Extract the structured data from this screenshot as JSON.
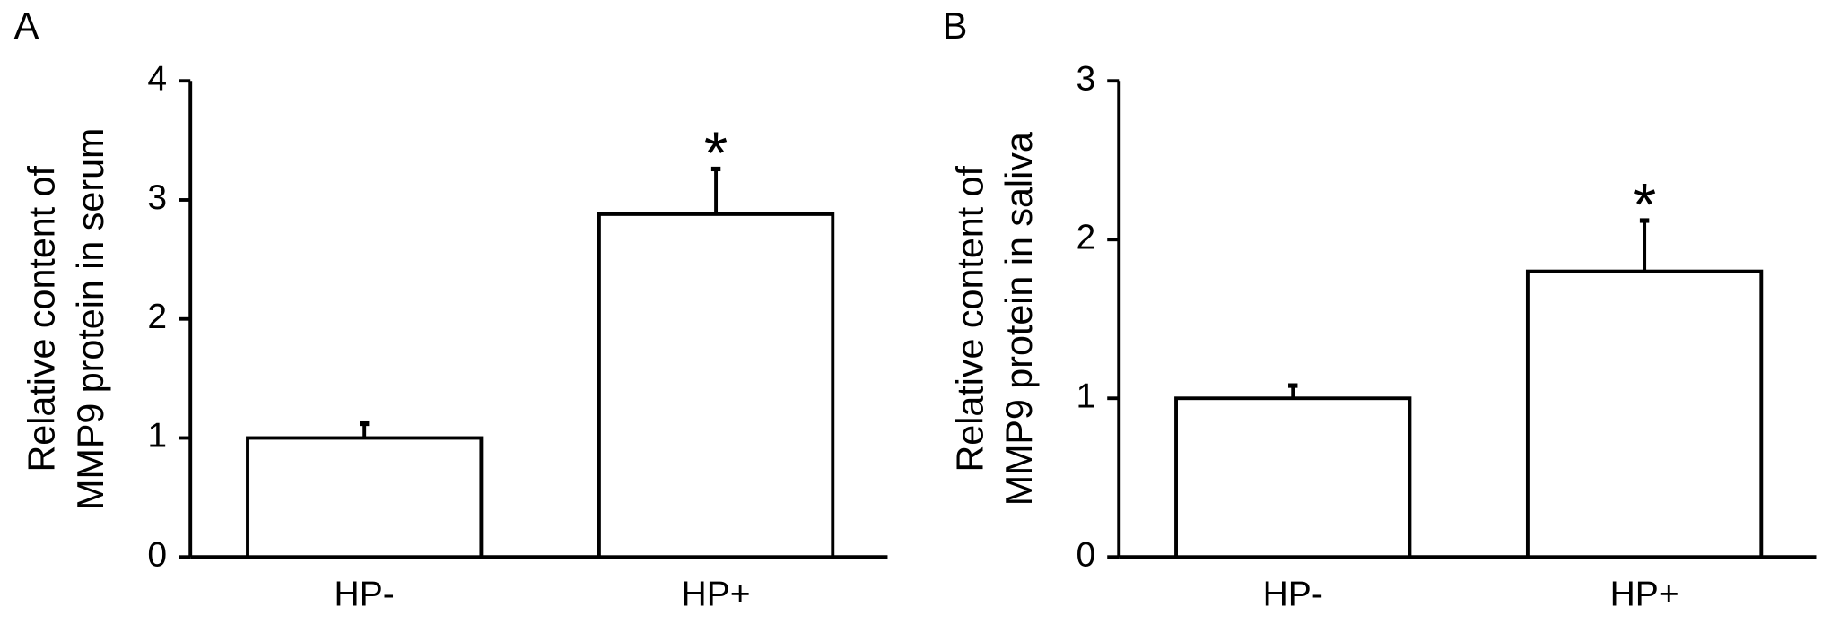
{
  "chart_data": [
    {
      "type": "bar",
      "panel": "A",
      "ylabel": [
        "Relative content of",
        "MMP9 protein in serum"
      ],
      "categories": [
        "HP-",
        "HP+"
      ],
      "values": [
        1.0,
        2.88
      ],
      "errors": [
        0.12,
        0.38
      ],
      "annotations": [
        null,
        "*"
      ],
      "color": "#ffffff",
      "ylim": [
        0,
        4
      ],
      "yticks": [
        0,
        1,
        2,
        3,
        4
      ]
    },
    {
      "type": "bar",
      "panel": "B",
      "ylabel": [
        "Relative content of",
        "MMP9 protein in saliva"
      ],
      "categories": [
        "HP-",
        "HP+"
      ],
      "values": [
        1.0,
        1.8
      ],
      "errors": [
        0.08,
        0.32
      ],
      "annotations": [
        null,
        "*"
      ],
      "color": "#ffffff",
      "ylim": [
        0,
        3
      ],
      "yticks": [
        0,
        1,
        2,
        3
      ]
    }
  ]
}
